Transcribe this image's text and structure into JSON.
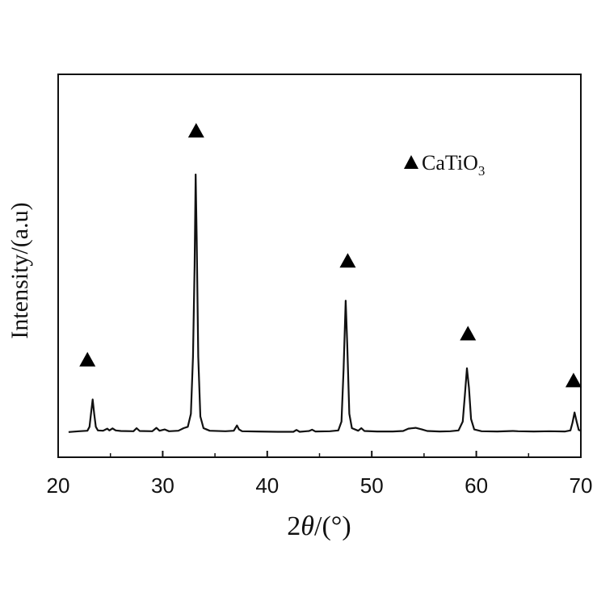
{
  "chart_data": {
    "type": "line",
    "xlabel_prefix": "2",
    "xlabel_theta": "θ",
    "xlabel_suffix": "/(°)",
    "ylabel": "Intensity/(a.u)",
    "xlim": [
      20,
      70
    ],
    "ylim": [
      0,
      100
    ],
    "x_ticks": [
      "20",
      "30",
      "40",
      "50",
      "60",
      "70"
    ],
    "y_ticks": [],
    "grid": false,
    "legend_position": "top-right",
    "legend": {
      "marker": "triangle",
      "text": "CaTiO",
      "subscript": "3"
    },
    "marker_color": "#000000",
    "series": [
      {
        "values_description": "XRD pattern",
        "points": [
          [
            21.0,
            1.0
          ],
          [
            22.0,
            1.3
          ],
          [
            22.8,
            1.5
          ],
          [
            23.0,
            3.0
          ],
          [
            23.15,
            8.5
          ],
          [
            23.3,
            13.5
          ],
          [
            23.45,
            8.0
          ],
          [
            23.6,
            3.0
          ],
          [
            23.8,
            1.6
          ],
          [
            24.3,
            1.5
          ],
          [
            24.7,
            2.3
          ],
          [
            24.9,
            1.6
          ],
          [
            25.2,
            2.4
          ],
          [
            25.5,
            1.6
          ],
          [
            26.0,
            1.4
          ],
          [
            27.2,
            1.3
          ],
          [
            27.5,
            2.5
          ],
          [
            27.8,
            1.4
          ],
          [
            29.0,
            1.3
          ],
          [
            29.4,
            2.6
          ],
          [
            29.7,
            1.5
          ],
          [
            30.2,
            2.0
          ],
          [
            30.6,
            1.3
          ],
          [
            31.5,
            1.5
          ],
          [
            32.0,
            2.5
          ],
          [
            32.4,
            3.0
          ],
          [
            32.7,
            8.0
          ],
          [
            32.9,
            30.0
          ],
          [
            33.05,
            65.0
          ],
          [
            33.15,
            100.0
          ],
          [
            33.25,
            75.0
          ],
          [
            33.4,
            30.0
          ],
          [
            33.6,
            7.0
          ],
          [
            33.9,
            2.5
          ],
          [
            34.5,
            1.5
          ],
          [
            36.0,
            1.3
          ],
          [
            36.8,
            1.5
          ],
          [
            37.1,
            3.5
          ],
          [
            37.3,
            2.0
          ],
          [
            37.6,
            1.3
          ],
          [
            39.0,
            1.2
          ],
          [
            41.0,
            1.1
          ],
          [
            42.5,
            1.1
          ],
          [
            42.8,
            1.8
          ],
          [
            43.1,
            1.1
          ],
          [
            44.0,
            1.4
          ],
          [
            44.3,
            1.9
          ],
          [
            44.6,
            1.2
          ],
          [
            46.0,
            1.3
          ],
          [
            46.8,
            1.6
          ],
          [
            47.1,
            5.0
          ],
          [
            47.3,
            25.0
          ],
          [
            47.5,
            51.5
          ],
          [
            47.65,
            35.0
          ],
          [
            47.85,
            8.0
          ],
          [
            48.1,
            2.5
          ],
          [
            48.7,
            1.5
          ],
          [
            49.0,
            2.5
          ],
          [
            49.3,
            1.4
          ],
          [
            50.5,
            1.2
          ],
          [
            52.0,
            1.2
          ],
          [
            53.0,
            1.4
          ],
          [
            53.5,
            2.3
          ],
          [
            54.2,
            2.6
          ],
          [
            54.8,
            2.0
          ],
          [
            55.3,
            1.4
          ],
          [
            56.5,
            1.2
          ],
          [
            57.5,
            1.3
          ],
          [
            58.3,
            1.6
          ],
          [
            58.7,
            5.0
          ],
          [
            58.9,
            15.0
          ],
          [
            59.1,
            25.5
          ],
          [
            59.3,
            18.0
          ],
          [
            59.5,
            6.0
          ],
          [
            59.8,
            2.0
          ],
          [
            60.5,
            1.3
          ],
          [
            62.0,
            1.2
          ],
          [
            63.5,
            1.4
          ],
          [
            64.0,
            1.3
          ],
          [
            65.5,
            1.2
          ],
          [
            67.0,
            1.3
          ],
          [
            68.5,
            1.2
          ],
          [
            69.0,
            1.6
          ],
          [
            69.2,
            4.5
          ],
          [
            69.4,
            8.5
          ],
          [
            69.6,
            5.0
          ],
          [
            69.8,
            1.8
          ],
          [
            70.0,
            1.5
          ]
        ]
      }
    ],
    "peak_markers": [
      {
        "x": 22.8,
        "y": 29
      },
      {
        "x": 33.2,
        "y": 117
      },
      {
        "x": 47.7,
        "y": 67
      },
      {
        "x": 59.2,
        "y": 39
      },
      {
        "x": 69.3,
        "y": 21
      }
    ]
  }
}
